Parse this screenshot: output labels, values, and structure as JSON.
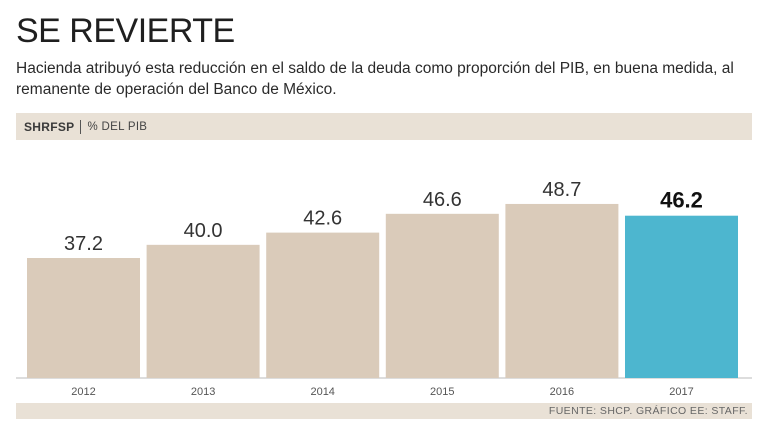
{
  "header": {
    "title": "SE REVIERTE",
    "subtitle": "Hacienda atribuyó esta reducción en el saldo de la deuda como proporción del PIB, en buena medida, al remanente de operación del Banco de México."
  },
  "band": {
    "code": "SHRFSP",
    "unit": "% DEL PIB"
  },
  "footer": {
    "source": "FUENTE: SHCP. GRÁFICO EE: STAFF."
  },
  "colors": {
    "bar": "#dacbba",
    "highlight": "#4db6cf",
    "band": "#e9e1d6"
  },
  "chart_data": {
    "type": "bar",
    "title": "SHRFSP",
    "ylabel": "% DEL PIB",
    "xlabel": "",
    "categories": [
      "2012",
      "2013",
      "2014",
      "2015",
      "2016",
      "2017"
    ],
    "values": [
      37.2,
      40.0,
      42.6,
      46.6,
      48.7,
      46.2
    ],
    "value_labels": [
      "37.2",
      "40.0",
      "42.6",
      "46.6",
      "48.7",
      "46.2"
    ],
    "highlight_index": 5,
    "ylim": [
      0,
      52
    ]
  }
}
